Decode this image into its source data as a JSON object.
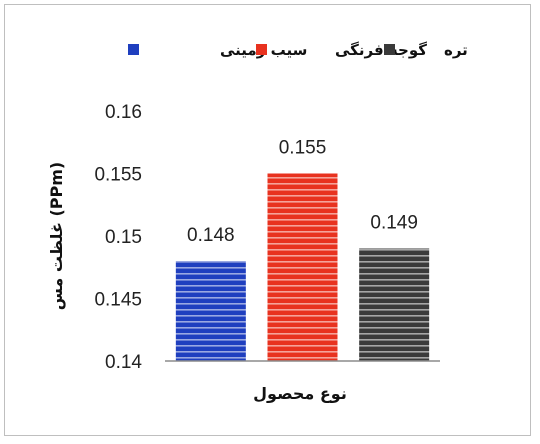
{
  "chart_data": {
    "type": "bar",
    "categories": [
      "سیب زمینی",
      "گوجه فرنگی",
      "تره"
    ],
    "values": [
      0.148,
      0.155,
      0.149
    ],
    "data_labels": [
      "0.148",
      "0.155",
      "0.149"
    ],
    "colors": [
      "#1f3fbf",
      "#e8321f",
      "#3a3a3a"
    ],
    "ylim": [
      0.14,
      0.16
    ],
    "yticks": [
      "0.14",
      "0.145",
      "0.15",
      "0.155",
      "0.16"
    ],
    "ylabel": "غلظت مس (PPm)",
    "xlabel": "نوع محصول",
    "legend": [
      "سیب زمینی",
      "گوجه فرنگی",
      "تره"
    ],
    "legend_position": "top",
    "grid": false
  }
}
